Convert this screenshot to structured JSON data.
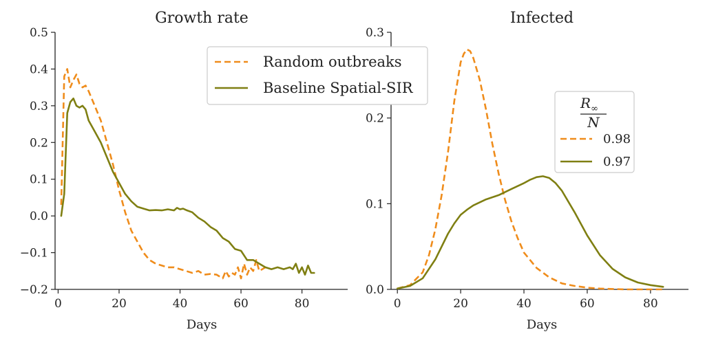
{
  "colors": {
    "random": "#ef8c1b",
    "baseline": "#7f7f12"
  },
  "chart_data": [
    {
      "type": "line",
      "title": "Growth rate",
      "xlabel": "Days",
      "ylabel": "",
      "xlim": [
        -1,
        95
      ],
      "ylim": [
        -0.2,
        0.5
      ],
      "xticks": [
        0,
        20,
        40,
        60,
        80
      ],
      "yticks": [
        -0.2,
        -0.1,
        0.0,
        0.1,
        0.2,
        0.3,
        0.4,
        0.5
      ],
      "ytick_labels": [
        "−0.2",
        "−0.1",
        "0.0",
        "0.1",
        "0.2",
        "0.3",
        "0.4",
        "0.5"
      ],
      "legend": "top-right",
      "series": [
        {
          "name": "Random outbreaks",
          "style": "dashed",
          "x": [
            1,
            2,
            3,
            4,
            5,
            6,
            7,
            8,
            9,
            10,
            12,
            14,
            16,
            18,
            20,
            22,
            24,
            26,
            28,
            30,
            32,
            34,
            36,
            38,
            40,
            42,
            44,
            46,
            48,
            50,
            52,
            54,
            55,
            56,
            57,
            58,
            59,
            60,
            61,
            62,
            63,
            64,
            65,
            66,
            68
          ],
          "values": [
            0.03,
            0.38,
            0.4,
            0.35,
            0.37,
            0.385,
            0.36,
            0.35,
            0.355,
            0.34,
            0.3,
            0.26,
            0.2,
            0.14,
            0.07,
            0.01,
            -0.04,
            -0.07,
            -0.1,
            -0.12,
            -0.13,
            -0.135,
            -0.14,
            -0.14,
            -0.145,
            -0.15,
            -0.155,
            -0.15,
            -0.16,
            -0.158,
            -0.16,
            -0.17,
            -0.15,
            -0.165,
            -0.155,
            -0.16,
            -0.14,
            -0.17,
            -0.13,
            -0.16,
            -0.14,
            -0.15,
            -0.12,
            -0.15,
            -0.14
          ]
        },
        {
          "name": "Baseline Spatial-SIR",
          "style": "solid",
          "x": [
            1,
            2,
            3,
            4,
            5,
            6,
            7,
            8,
            9,
            10,
            12,
            14,
            16,
            18,
            20,
            22,
            24,
            26,
            28,
            30,
            32,
            34,
            36,
            38,
            39,
            40,
            41,
            42,
            44,
            46,
            48,
            50,
            52,
            54,
            56,
            58,
            60,
            62,
            64,
            66,
            68,
            70,
            72,
            74,
            76,
            77,
            78,
            79,
            80,
            81,
            82,
            83,
            84
          ],
          "values": [
            0.0,
            0.06,
            0.28,
            0.31,
            0.32,
            0.3,
            0.295,
            0.3,
            0.29,
            0.26,
            0.23,
            0.2,
            0.16,
            0.12,
            0.09,
            0.06,
            0.04,
            0.025,
            0.02,
            0.015,
            0.016,
            0.015,
            0.018,
            0.015,
            0.022,
            0.018,
            0.02,
            0.016,
            0.01,
            -0.005,
            -0.015,
            -0.03,
            -0.04,
            -0.06,
            -0.07,
            -0.09,
            -0.095,
            -0.12,
            -0.12,
            -0.13,
            -0.14,
            -0.145,
            -0.14,
            -0.145,
            -0.14,
            -0.145,
            -0.13,
            -0.155,
            -0.14,
            -0.16,
            -0.135,
            -0.155,
            -0.155
          ]
        }
      ]
    },
    {
      "type": "line",
      "title": "Infected",
      "xlabel": "Days",
      "ylabel": "",
      "xlim": [
        -2,
        92
      ],
      "ylim": [
        0.0,
        0.3
      ],
      "xticks": [
        0,
        20,
        40,
        60,
        80
      ],
      "yticks": [
        0.0,
        0.1,
        0.2,
        0.3
      ],
      "ytick_labels": [
        "0.0",
        "0.1",
        "0.2",
        "0.3"
      ],
      "legend": "upper-right",
      "legend_title": "R∞ / N",
      "series": [
        {
          "name": "0.98",
          "style": "dashed",
          "x": [
            0,
            4,
            8,
            10,
            12,
            14,
            16,
            18,
            20,
            21,
            22,
            23,
            24,
            26,
            28,
            30,
            32,
            34,
            36,
            38,
            40,
            44,
            48,
            52,
            56,
            60,
            64,
            68,
            72,
            76,
            80,
            84
          ],
          "values": [
            0.001,
            0.005,
            0.02,
            0.04,
            0.07,
            0.11,
            0.16,
            0.22,
            0.265,
            0.275,
            0.28,
            0.278,
            0.27,
            0.245,
            0.21,
            0.17,
            0.135,
            0.105,
            0.08,
            0.06,
            0.043,
            0.025,
            0.014,
            0.007,
            0.004,
            0.002,
            0.001,
            0.0005,
            0.0,
            0.0,
            0.0,
            0.0
          ]
        },
        {
          "name": "0.97",
          "style": "solid",
          "x": [
            0,
            4,
            8,
            12,
            16,
            18,
            20,
            22,
            24,
            28,
            32,
            36,
            40,
            42,
            44,
            46,
            48,
            50,
            52,
            56,
            60,
            64,
            68,
            72,
            76,
            80,
            84
          ],
          "values": [
            0.001,
            0.004,
            0.013,
            0.035,
            0.065,
            0.077,
            0.087,
            0.093,
            0.098,
            0.105,
            0.11,
            0.117,
            0.124,
            0.128,
            0.131,
            0.132,
            0.13,
            0.124,
            0.115,
            0.09,
            0.063,
            0.04,
            0.024,
            0.014,
            0.008,
            0.005,
            0.003
          ]
        }
      ]
    }
  ]
}
